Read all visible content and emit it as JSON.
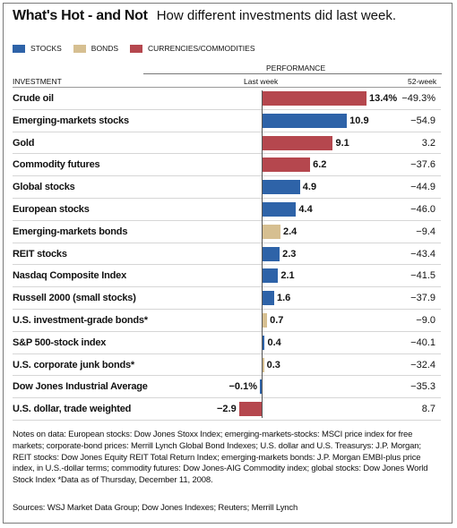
{
  "header": {
    "title": "What's Hot - and Not",
    "subtitle": "How different investments did last week."
  },
  "legend": [
    {
      "label": "STOCKS",
      "color": "#2e63a8"
    },
    {
      "label": "BONDS",
      "color": "#d6bf91"
    },
    {
      "label": "CURRENCIES/COMMODITIES",
      "color": "#b5474e"
    }
  ],
  "columns": {
    "investment": "INVESTMENT",
    "performance": "PERFORMANCE",
    "last_week": "Last week",
    "week52": "52-week"
  },
  "chart_data": {
    "type": "bar",
    "orientation": "horizontal",
    "categories": [
      "Crude oil",
      "Emerging-markets stocks",
      "Gold",
      "Commodity futures",
      "Global stocks",
      "European stocks",
      "Emerging-markets bonds",
      "REIT stocks",
      "Nasdaq Composite Index",
      "Russell 2000 (small stocks)",
      "U.S. investment-grade bonds*",
      "S&P 500-stock index",
      "U.S. corporate junk bonds*",
      "Dow Jones Industrial Average",
      "U.S. dollar, trade weighted"
    ],
    "values": [
      13.4,
      10.9,
      9.1,
      6.2,
      4.9,
      4.4,
      2.4,
      2.3,
      2.1,
      1.6,
      0.7,
      0.4,
      0.3,
      -0.1,
      -2.9
    ],
    "value_labels": [
      "13.4%",
      "10.9",
      "9.1",
      "6.2",
      "4.9",
      "4.4",
      "2.4",
      "2.3",
      "2.1",
      "1.6",
      "0.7",
      "0.4",
      "0.3",
      "−0.1%",
      "−2.9"
    ],
    "groups": [
      "currencies",
      "stocks",
      "currencies",
      "currencies",
      "stocks",
      "stocks",
      "bonds",
      "stocks",
      "stocks",
      "stocks",
      "bonds",
      "stocks",
      "bonds",
      "stocks",
      "currencies"
    ],
    "week52": [
      "−49.3%",
      "−54.9",
      "3.2",
      "−37.6",
      "−44.9",
      "−46.0",
      "−9.4",
      "−43.4",
      "−41.5",
      "−37.9",
      "−9.0",
      "−40.1",
      "−32.4",
      "−35.3",
      "8.7"
    ],
    "xlim": [
      -2.9,
      13.4
    ]
  },
  "notes": "Notes on data: European stocks: Dow Jones Stoxx Index; emerging-markets-stocks: MSCI price index for free markets; corporate-bond prices: Merrill Lynch Global Bond Indexes; U.S. dollar and U.S. Treasurys: J.P. Morgan; REIT stocks: Dow Jones Equity REIT Total Return Index; emerging-markets bonds: J.P. Morgan EMBI-plus price index, in U.S.-dollar terms; commodity futures: Dow Jones-AIG Commodity index; global stocks: Dow Jones World Stock Index   *Data as of Thursday, December 11, 2008.",
  "sources": "Sources: WSJ Market Data Group; Dow Jones Indexes; Reuters; Merrill Lynch"
}
